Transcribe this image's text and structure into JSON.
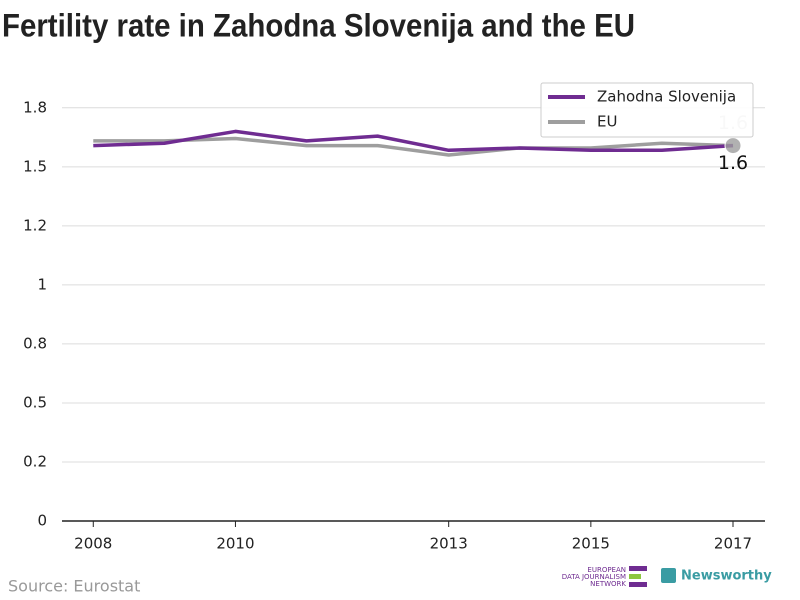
{
  "chart_data": {
    "type": "line",
    "title": "Fertility rate in Zahodna Slovenija and the EU",
    "x": [
      2008,
      2009,
      2010,
      2011,
      2012,
      2013,
      2014,
      2015,
      2016,
      2017
    ],
    "series": [
      {
        "name": "Zahodna Slovenija",
        "color": "#6f2c91",
        "values": [
          1.59,
          1.6,
          1.65,
          1.61,
          1.63,
          1.57,
          1.58,
          1.57,
          1.57,
          1.59
        ],
        "value_labels": [
          null,
          null,
          null,
          null,
          null,
          null,
          null,
          null,
          null,
          "1.6"
        ]
      },
      {
        "name": "EU",
        "color": "#9e9e9e",
        "values": [
          1.61,
          1.61,
          1.62,
          1.59,
          1.59,
          1.55,
          1.58,
          1.58,
          1.6,
          1.59
        ],
        "value_labels": [
          null,
          null,
          null,
          null,
          null,
          null,
          null,
          null,
          null,
          "1.6"
        ]
      }
    ],
    "xlim": [
      2007.56,
      2017.45
    ],
    "xticks": [
      2008,
      2010,
      2013,
      2015,
      2017
    ],
    "ylim": [
      0,
      1.8
    ],
    "yticks": [
      0,
      {
        "value": 0.25,
        "label": "0.2"
      },
      0.5,
      {
        "value": 0.75,
        "label": "0.8"
      },
      1,
      {
        "value": 1.25,
        "label": "1.2"
      },
      1.5,
      {
        "value": 1.75,
        "label": "1.8"
      }
    ],
    "grid": true,
    "legend": "top-right",
    "source": "Source: Eurostat",
    "logo_edjn": [
      "EUROPEAN",
      "DATA JOURNALISM",
      "NETWORK"
    ],
    "logo_newsworthy": "Newsworthy"
  }
}
